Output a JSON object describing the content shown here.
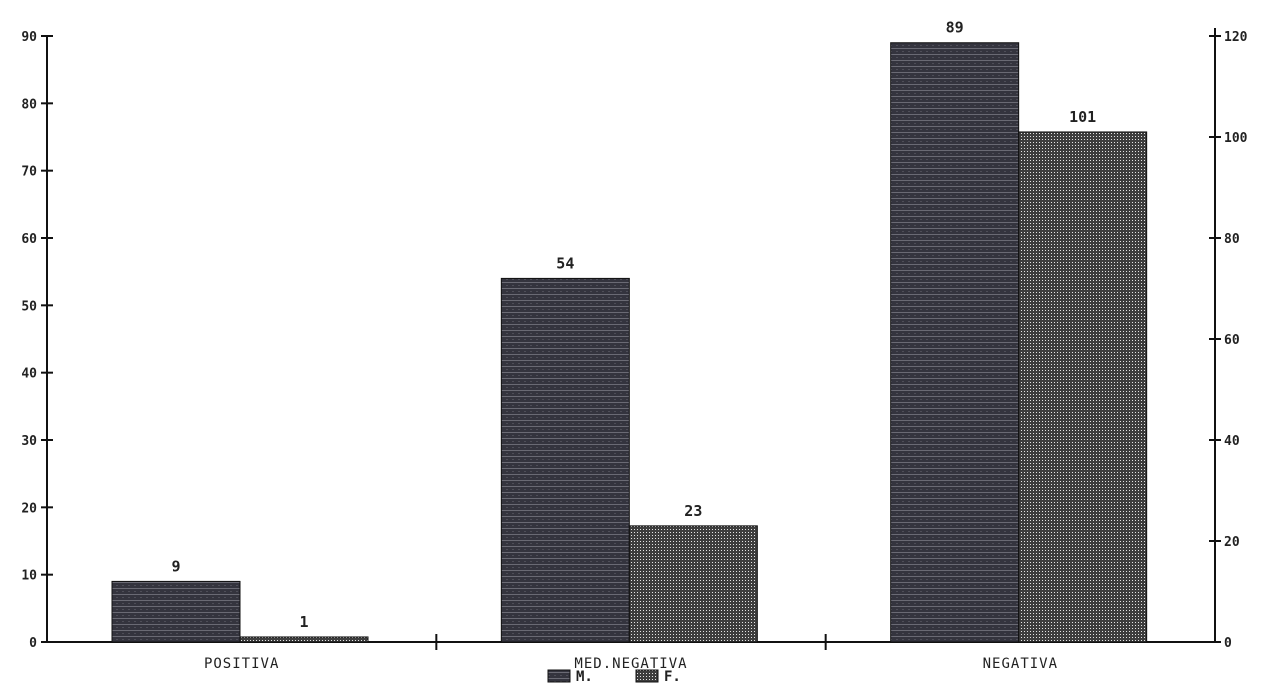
{
  "chart_data": {
    "type": "bar",
    "categories": [
      "POSITIVA",
      "MED.NEGATIVA",
      "NEGATIVA"
    ],
    "series": [
      {
        "name": "M.",
        "axis": "left",
        "values": [
          9,
          54,
          89
        ],
        "color": "#3a3a44"
      },
      {
        "name": "F.",
        "axis": "right",
        "values": [
          1,
          23,
          101
        ],
        "color": "#555555"
      }
    ],
    "left_axis": {
      "ylim": [
        0,
        90
      ],
      "ticks": [
        "0",
        "10",
        "20",
        "30",
        "40",
        "50",
        "60",
        "70",
        "80",
        "90"
      ]
    },
    "right_axis": {
      "ylim": [
        0,
        120
      ],
      "ticks": [
        "0",
        "20",
        "40",
        "60",
        "80",
        "100",
        "120"
      ]
    },
    "legend_placement": "bottom-center",
    "grid": false,
    "title": "",
    "xlabel": "",
    "ylabel": ""
  }
}
